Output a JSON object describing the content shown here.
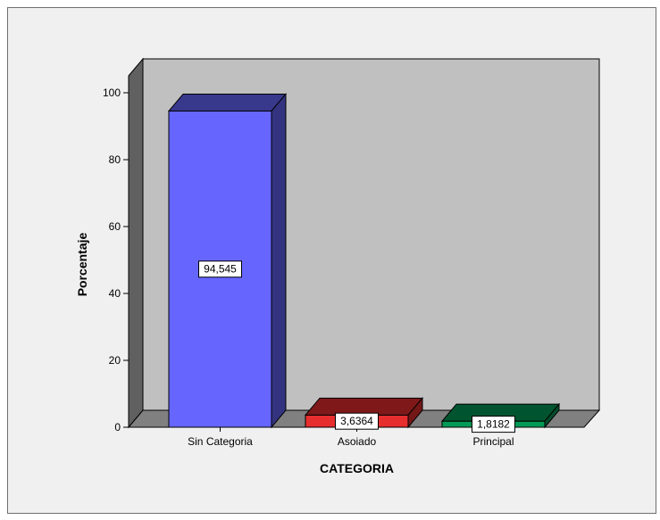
{
  "chart_data": {
    "type": "bar",
    "three_d": true,
    "categories": [
      "Sin Categoria",
      "Asoiado",
      "Principal"
    ],
    "values": [
      94.545,
      3.6364,
      1.8182
    ],
    "data_labels": [
      "94,545",
      "3,6364",
      "1,8182"
    ],
    "colors": [
      "#6666ff",
      "#e62e2e",
      "#009955"
    ],
    "title": "",
    "xlabel": "CATEGORIA",
    "ylabel": "Porcentaje",
    "ylim": [
      0,
      100
    ],
    "yticks": [
      "0",
      "20",
      "40",
      "60",
      "80",
      "100"
    ],
    "grid": false,
    "legend": "none",
    "wall_color": "#c0c0c0",
    "floor_color": "#808080"
  }
}
